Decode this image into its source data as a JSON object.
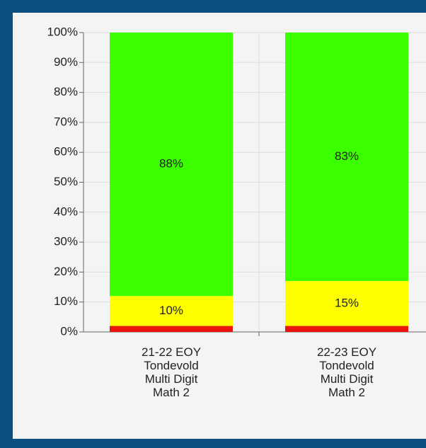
{
  "chart_data": {
    "type": "stacked_bar",
    "categories": [
      "21-22 EOY\nTondevold\nMulti Digit\nMath 2",
      "22-23 EOY\nTondevold\nMulti Digit\nMath 2"
    ],
    "series": [
      {
        "color": "#e8160c",
        "values": [
          2,
          2
        ]
      },
      {
        "color": "#ffff00",
        "values": [
          10,
          15
        ],
        "value_labels": [
          "10%",
          "15%"
        ]
      },
      {
        "color": "#3cff00",
        "values": [
          88,
          83
        ],
        "value_labels": [
          "88%",
          "83%"
        ]
      }
    ],
    "ylim": [
      0,
      100
    ],
    "yticks": [
      {
        "value": 0,
        "label": "0%"
      },
      {
        "value": 10,
        "label": "10%"
      },
      {
        "value": 20,
        "label": "20%"
      },
      {
        "value": 30,
        "label": "30%"
      },
      {
        "value": 40,
        "label": "40%"
      },
      {
        "value": 50,
        "label": "50%"
      },
      {
        "value": 60,
        "label": "60%"
      },
      {
        "value": 70,
        "label": "70%"
      },
      {
        "value": 80,
        "label": "80%"
      },
      {
        "value": 90,
        "label": "90%"
      },
      {
        "value": 100,
        "label": "100%"
      }
    ],
    "grid": true
  }
}
